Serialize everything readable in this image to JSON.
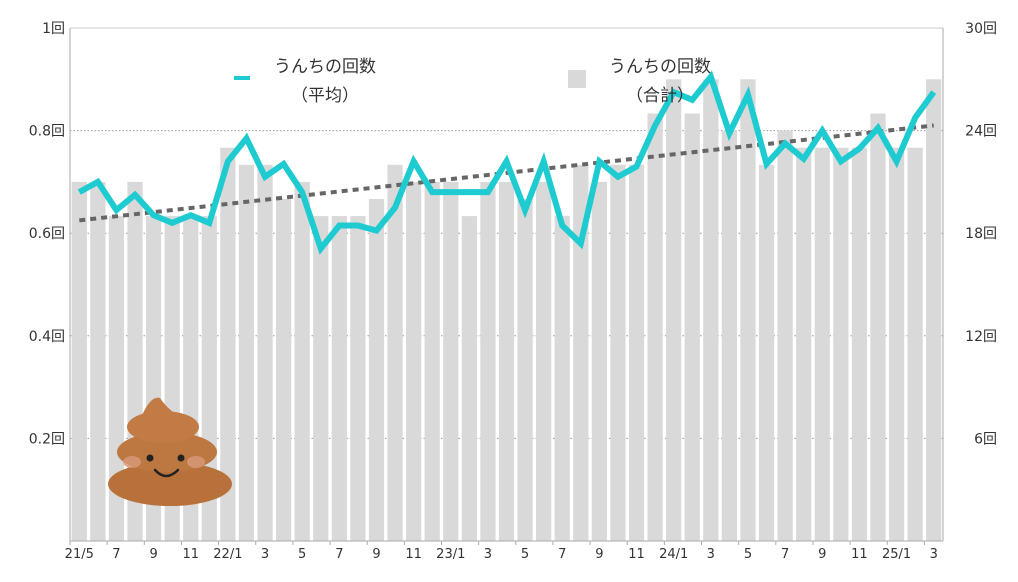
{
  "chart_data": {
    "type": "bar+line",
    "title": "",
    "x_tick_labels": [
      "21/5",
      "7",
      "9",
      "11",
      "22/1",
      "3",
      "5",
      "7",
      "9",
      "11",
      "23/1",
      "3",
      "5",
      "7",
      "9",
      "11",
      "24/1",
      "3",
      "5",
      "7",
      "9",
      "11",
      "25/1",
      "3"
    ],
    "categories": [
      "21/5",
      "21/6",
      "21/7",
      "21/8",
      "21/9",
      "21/10",
      "21/11",
      "21/12",
      "22/1",
      "22/2",
      "22/3",
      "22/4",
      "22/5",
      "22/6",
      "22/7",
      "22/8",
      "22/9",
      "22/10",
      "22/11",
      "22/12",
      "23/1",
      "23/2",
      "23/3",
      "23/4",
      "23/5",
      "23/6",
      "23/7",
      "23/8",
      "23/9",
      "23/10",
      "23/11",
      "23/12",
      "24/1",
      "24/2",
      "24/3",
      "24/4",
      "24/5",
      "24/6",
      "24/7",
      "24/8",
      "24/9",
      "24/10",
      "24/11",
      "24/12",
      "25/1",
      "25/2",
      "25/3"
    ],
    "left_axis": {
      "ticks": [
        "0.2回",
        "0.4回",
        "0.6回",
        "0.8回",
        "1回"
      ],
      "ylim": [
        0,
        1
      ]
    },
    "right_axis": {
      "ticks": [
        "6回",
        "12回",
        "18回",
        "24回",
        "30回"
      ],
      "ylim": [
        0,
        30
      ]
    },
    "series": [
      {
        "name": "うんちの回数（合計）",
        "type": "bar",
        "axis": "right",
        "color": "#d9d9d9",
        "values": [
          21,
          21,
          19,
          21,
          19,
          19,
          19,
          19,
          23,
          22,
          22,
          20,
          21,
          19,
          19,
          19,
          20,
          22,
          21,
          21,
          21,
          19,
          21,
          21,
          20,
          21,
          19,
          22,
          21,
          22,
          22,
          25,
          27,
          25,
          27,
          24,
          27,
          22,
          24,
          23,
          23,
          23,
          23,
          25,
          23,
          23,
          27
        ]
      },
      {
        "name": "うんちの回数（平均）",
        "type": "line",
        "axis": "left",
        "color": "#1ecbd1",
        "values": [
          0.68,
          0.7,
          0.645,
          0.675,
          0.635,
          0.62,
          0.635,
          0.62,
          0.74,
          0.785,
          0.71,
          0.735,
          0.68,
          0.57,
          0.615,
          0.615,
          0.605,
          0.65,
          0.74,
          0.68,
          0.68,
          0.68,
          0.68,
          0.74,
          0.645,
          0.74,
          0.615,
          0.58,
          0.74,
          0.71,
          0.73,
          0.81,
          0.875,
          0.86,
          0.905,
          0.795,
          0.87,
          0.735,
          0.775,
          0.745,
          0.8,
          0.74,
          0.765,
          0.805,
          0.74,
          0.825,
          0.875
        ]
      }
    ],
    "trendline": {
      "axis": "left",
      "style": "dotted",
      "color": "#666666",
      "start": 0.625,
      "end": 0.81
    },
    "legend": [
      {
        "label_line1": "うんちの回数",
        "label_line2": "（平均）",
        "marker": "line",
        "color": "#1ecbd1"
      },
      {
        "label_line1": "うんちの回数",
        "label_line2": "（合計）",
        "marker": "square",
        "color": "#d9d9d9"
      }
    ],
    "legend_position": "top",
    "grid": "horizontal-dotted"
  },
  "decoration": {
    "icon": "poop-icon",
    "color": "#b8713a"
  }
}
